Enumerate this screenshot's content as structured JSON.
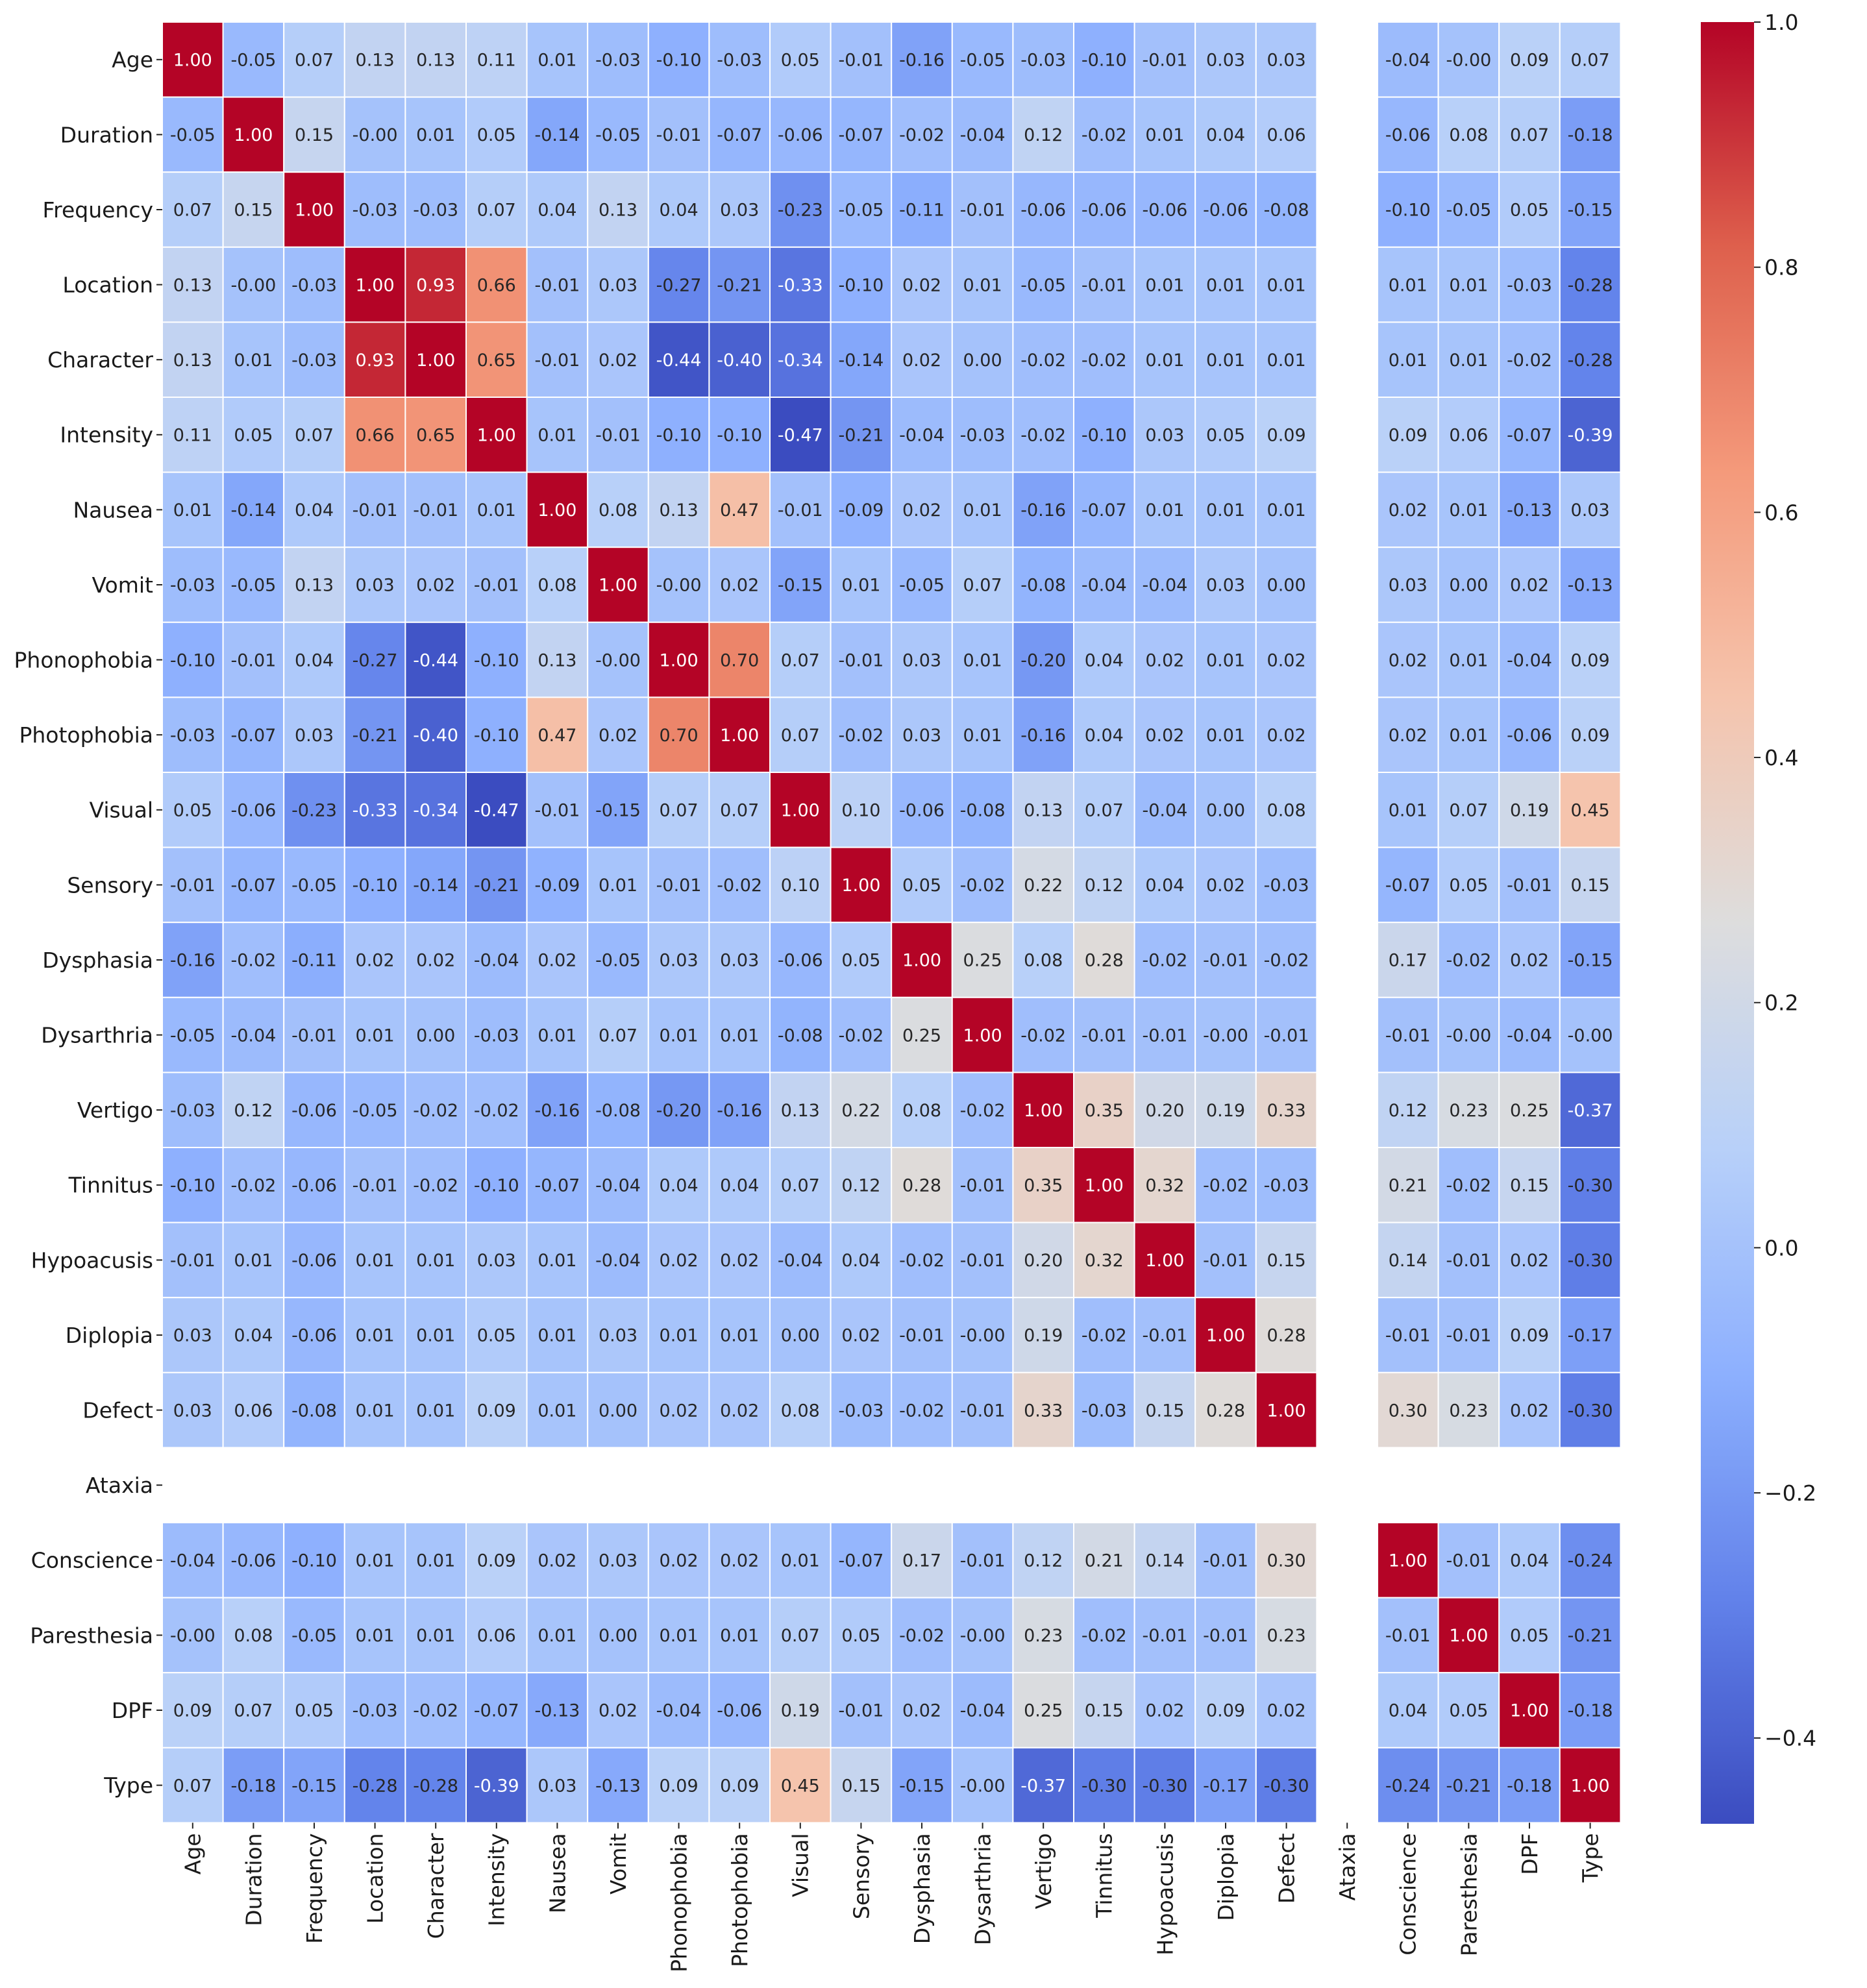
{
  "chart_data": {
    "type": "heatmap",
    "title": "",
    "xlabel": "",
    "ylabel": "",
    "colormap": "coolwarm",
    "vmin": -0.47,
    "vmax": 1.0,
    "variables": [
      "Age",
      "Duration",
      "Frequency",
      "Location",
      "Character",
      "Intensity",
      "Nausea",
      "Vomit",
      "Phonophobia",
      "Photophobia",
      "Visual",
      "Sensory",
      "Dysphasia",
      "Dysarthria",
      "Vertigo",
      "Tinnitus",
      "Hypoacusis",
      "Diplopia",
      "Defect",
      "Ataxia",
      "Conscience",
      "Paresthesia",
      "DPF",
      "Type"
    ],
    "missing_variable": "Ataxia",
    "matrix": [
      [
        1.0,
        -0.05,
        0.07,
        0.13,
        0.13,
        0.11,
        0.01,
        -0.03,
        -0.1,
        -0.03,
        0.05,
        -0.01,
        -0.16,
        -0.05,
        -0.03,
        -0.1,
        -0.01,
        0.03,
        0.03,
        null,
        -0.04,
        -0.0,
        0.09,
        0.07
      ],
      [
        -0.05,
        1.0,
        0.15,
        -0.0,
        0.01,
        0.05,
        -0.14,
        -0.05,
        -0.01,
        -0.07,
        -0.06,
        -0.07,
        -0.02,
        -0.04,
        0.12,
        -0.02,
        0.01,
        0.04,
        0.06,
        null,
        -0.06,
        0.08,
        0.07,
        -0.18
      ],
      [
        0.07,
        0.15,
        1.0,
        -0.03,
        -0.03,
        0.07,
        0.04,
        0.13,
        0.04,
        0.03,
        -0.23,
        -0.05,
        -0.11,
        -0.01,
        -0.06,
        -0.06,
        -0.06,
        -0.06,
        -0.08,
        null,
        -0.1,
        -0.05,
        0.05,
        -0.15
      ],
      [
        0.13,
        -0.0,
        -0.03,
        1.0,
        0.93,
        0.66,
        -0.01,
        0.03,
        -0.27,
        -0.21,
        -0.33,
        -0.1,
        0.02,
        0.01,
        -0.05,
        -0.01,
        0.01,
        0.01,
        0.01,
        null,
        0.01,
        0.01,
        -0.03,
        -0.28
      ],
      [
        0.13,
        0.01,
        -0.03,
        0.93,
        1.0,
        0.65,
        -0.01,
        0.02,
        -0.44,
        -0.4,
        -0.34,
        -0.14,
        0.02,
        0.0,
        -0.02,
        -0.02,
        0.01,
        0.01,
        0.01,
        null,
        0.01,
        0.01,
        -0.02,
        -0.28
      ],
      [
        0.11,
        0.05,
        0.07,
        0.66,
        0.65,
        1.0,
        0.01,
        -0.01,
        -0.1,
        -0.1,
        -0.47,
        -0.21,
        -0.04,
        -0.03,
        -0.02,
        -0.1,
        0.03,
        0.05,
        0.09,
        null,
        0.09,
        0.06,
        -0.07,
        -0.39
      ],
      [
        0.01,
        -0.14,
        0.04,
        -0.01,
        -0.01,
        0.01,
        1.0,
        0.08,
        0.13,
        0.47,
        -0.01,
        -0.09,
        0.02,
        0.01,
        -0.16,
        -0.07,
        0.01,
        0.01,
        0.01,
        null,
        0.02,
        0.01,
        -0.13,
        0.03
      ],
      [
        -0.03,
        -0.05,
        0.13,
        0.03,
        0.02,
        -0.01,
        0.08,
        1.0,
        -0.0,
        0.02,
        -0.15,
        0.01,
        -0.05,
        0.07,
        -0.08,
        -0.04,
        -0.04,
        0.03,
        0.0,
        null,
        0.03,
        0.0,
        0.02,
        -0.13
      ],
      [
        -0.1,
        -0.01,
        0.04,
        -0.27,
        -0.44,
        -0.1,
        0.13,
        -0.0,
        1.0,
        0.7,
        0.07,
        -0.01,
        0.03,
        0.01,
        -0.2,
        0.04,
        0.02,
        0.01,
        0.02,
        null,
        0.02,
        0.01,
        -0.04,
        0.09
      ],
      [
        -0.03,
        -0.07,
        0.03,
        -0.21,
        -0.4,
        -0.1,
        0.47,
        0.02,
        0.7,
        1.0,
        0.07,
        -0.02,
        0.03,
        0.01,
        -0.16,
        0.04,
        0.02,
        0.01,
        0.02,
        null,
        0.02,
        0.01,
        -0.06,
        0.09
      ],
      [
        0.05,
        -0.06,
        -0.23,
        -0.33,
        -0.34,
        -0.47,
        -0.01,
        -0.15,
        0.07,
        0.07,
        1.0,
        0.1,
        -0.06,
        -0.08,
        0.13,
        0.07,
        -0.04,
        0.0,
        0.08,
        null,
        0.01,
        0.07,
        0.19,
        0.45
      ],
      [
        -0.01,
        -0.07,
        -0.05,
        -0.1,
        -0.14,
        -0.21,
        -0.09,
        0.01,
        -0.01,
        -0.02,
        0.1,
        1.0,
        0.05,
        -0.02,
        0.22,
        0.12,
        0.04,
        0.02,
        -0.03,
        null,
        -0.07,
        0.05,
        -0.01,
        0.15
      ],
      [
        -0.16,
        -0.02,
        -0.11,
        0.02,
        0.02,
        -0.04,
        0.02,
        -0.05,
        0.03,
        0.03,
        -0.06,
        0.05,
        1.0,
        0.25,
        0.08,
        0.28,
        -0.02,
        -0.01,
        -0.02,
        null,
        0.17,
        -0.02,
        0.02,
        -0.15
      ],
      [
        -0.05,
        -0.04,
        -0.01,
        0.01,
        0.0,
        -0.03,
        0.01,
        0.07,
        0.01,
        0.01,
        -0.08,
        -0.02,
        0.25,
        1.0,
        -0.02,
        -0.01,
        -0.01,
        -0.0,
        -0.01,
        null,
        -0.01,
        -0.0,
        -0.04,
        -0.0
      ],
      [
        -0.03,
        0.12,
        -0.06,
        -0.05,
        -0.02,
        -0.02,
        -0.16,
        -0.08,
        -0.2,
        -0.16,
        0.13,
        0.22,
        0.08,
        -0.02,
        1.0,
        0.35,
        0.2,
        0.19,
        0.33,
        null,
        0.12,
        0.23,
        0.25,
        -0.37
      ],
      [
        -0.1,
        -0.02,
        -0.06,
        -0.01,
        -0.02,
        -0.1,
        -0.07,
        -0.04,
        0.04,
        0.04,
        0.07,
        0.12,
        0.28,
        -0.01,
        0.35,
        1.0,
        0.32,
        -0.02,
        -0.03,
        null,
        0.21,
        -0.02,
        0.15,
        -0.3
      ],
      [
        -0.01,
        0.01,
        -0.06,
        0.01,
        0.01,
        0.03,
        0.01,
        -0.04,
        0.02,
        0.02,
        -0.04,
        0.04,
        -0.02,
        -0.01,
        0.2,
        0.32,
        1.0,
        -0.01,
        0.15,
        null,
        0.14,
        -0.01,
        0.02,
        -0.3
      ],
      [
        0.03,
        0.04,
        -0.06,
        0.01,
        0.01,
        0.05,
        0.01,
        0.03,
        0.01,
        0.01,
        0.0,
        0.02,
        -0.01,
        -0.0,
        0.19,
        -0.02,
        -0.01,
        1.0,
        0.28,
        null,
        -0.01,
        -0.01,
        0.09,
        -0.17
      ],
      [
        0.03,
        0.06,
        -0.08,
        0.01,
        0.01,
        0.09,
        0.01,
        0.0,
        0.02,
        0.02,
        0.08,
        -0.03,
        -0.02,
        -0.01,
        0.33,
        -0.03,
        0.15,
        0.28,
        1.0,
        null,
        0.3,
        0.23,
        0.02,
        -0.3
      ],
      [
        null,
        null,
        null,
        null,
        null,
        null,
        null,
        null,
        null,
        null,
        null,
        null,
        null,
        null,
        null,
        null,
        null,
        null,
        null,
        null,
        null,
        null,
        null,
        null
      ],
      [
        -0.04,
        -0.06,
        -0.1,
        0.01,
        0.01,
        0.09,
        0.02,
        0.03,
        0.02,
        0.02,
        0.01,
        -0.07,
        0.17,
        -0.01,
        0.12,
        0.21,
        0.14,
        -0.01,
        0.3,
        null,
        1.0,
        -0.01,
        0.04,
        -0.24
      ],
      [
        -0.0,
        0.08,
        -0.05,
        0.01,
        0.01,
        0.06,
        0.01,
        0.0,
        0.01,
        0.01,
        0.07,
        0.05,
        -0.02,
        -0.0,
        0.23,
        -0.02,
        -0.01,
        -0.01,
        0.23,
        null,
        -0.01,
        1.0,
        0.05,
        -0.21
      ],
      [
        0.09,
        0.07,
        0.05,
        -0.03,
        -0.02,
        -0.07,
        -0.13,
        0.02,
        -0.04,
        -0.06,
        0.19,
        -0.01,
        0.02,
        -0.04,
        0.25,
        0.15,
        0.02,
        0.09,
        0.02,
        null,
        0.04,
        0.05,
        1.0,
        -0.18
      ],
      [
        0.07,
        -0.18,
        -0.15,
        -0.28,
        -0.28,
        -0.39,
        0.03,
        -0.13,
        0.09,
        0.09,
        0.45,
        0.15,
        -0.15,
        -0.0,
        -0.37,
        -0.3,
        -0.3,
        -0.17,
        -0.3,
        null,
        -0.24,
        -0.21,
        -0.18,
        1.0
      ]
    ],
    "colorbar": {
      "ticks": [
        1.0,
        0.8,
        0.6,
        0.4,
        0.2,
        0.0,
        -0.2,
        -0.4
      ],
      "tick_labels": [
        "1.0",
        "0.8",
        "0.6",
        "0.4",
        "0.2",
        "0.0",
        "−0.2",
        "−0.4"
      ]
    }
  }
}
